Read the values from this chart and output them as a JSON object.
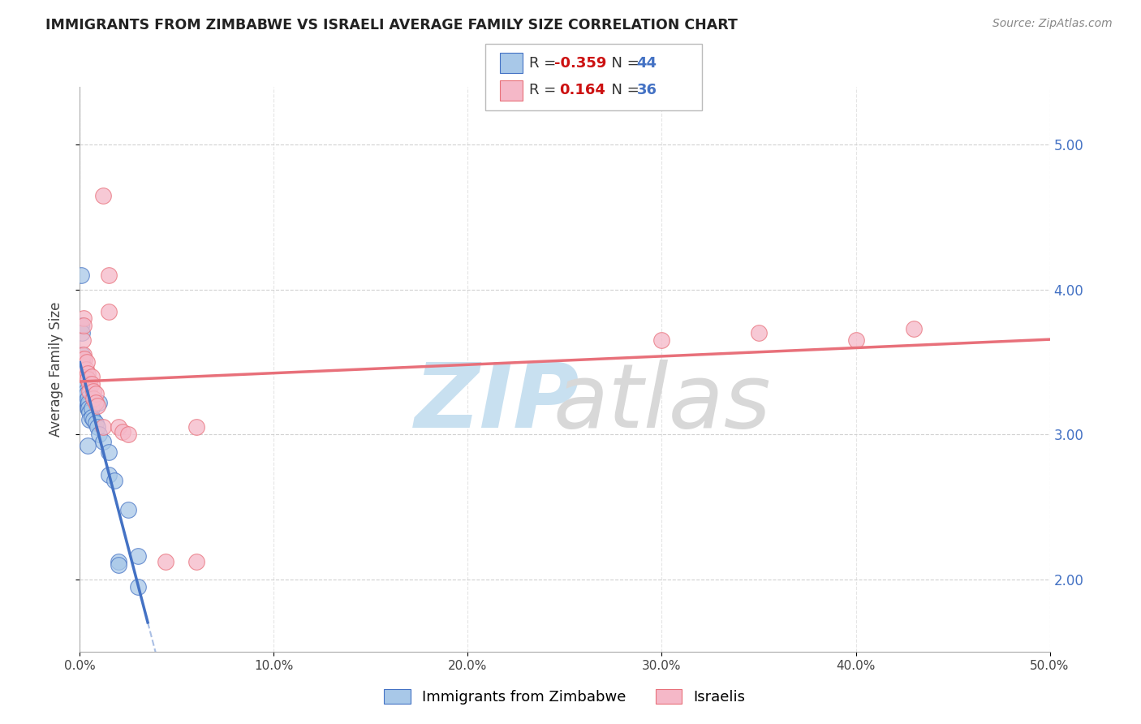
{
  "title": "IMMIGRANTS FROM ZIMBABWE VS ISRAELI AVERAGE FAMILY SIZE CORRELATION CHART",
  "source": "Source: ZipAtlas.com",
  "ylabel": "Average Family Size",
  "ylim": [
    1.5,
    5.4
  ],
  "xlim": [
    0.0,
    0.5
  ],
  "blue_scatter": [
    [
      0.0005,
      4.1
    ],
    [
      0.0008,
      3.75
    ],
    [
      0.001,
      3.7
    ],
    [
      0.001,
      3.55
    ],
    [
      0.001,
      3.5
    ],
    [
      0.0012,
      3.45
    ],
    [
      0.0015,
      3.42
    ],
    [
      0.0015,
      3.38
    ],
    [
      0.002,
      3.4
    ],
    [
      0.002,
      3.38
    ],
    [
      0.002,
      3.35
    ],
    [
      0.0022,
      3.32
    ],
    [
      0.0025,
      3.35
    ],
    [
      0.0025,
      3.3
    ],
    [
      0.003,
      3.33
    ],
    [
      0.003,
      3.28
    ],
    [
      0.003,
      3.25
    ],
    [
      0.0032,
      3.3
    ],
    [
      0.0035,
      3.28
    ],
    [
      0.0035,
      3.22
    ],
    [
      0.004,
      3.25
    ],
    [
      0.004,
      3.2
    ],
    [
      0.004,
      3.18
    ],
    [
      0.0045,
      3.22
    ],
    [
      0.0045,
      3.18
    ],
    [
      0.005,
      3.15
    ],
    [
      0.005,
      3.1
    ],
    [
      0.006,
      3.18
    ],
    [
      0.006,
      3.12
    ],
    [
      0.007,
      3.1
    ],
    [
      0.008,
      3.08
    ],
    [
      0.009,
      3.05
    ],
    [
      0.01,
      3.22
    ],
    [
      0.01,
      3.0
    ],
    [
      0.012,
      2.95
    ],
    [
      0.015,
      2.88
    ],
    [
      0.015,
      2.72
    ],
    [
      0.018,
      2.68
    ],
    [
      0.02,
      2.12
    ],
    [
      0.02,
      2.1
    ],
    [
      0.025,
      2.48
    ],
    [
      0.03,
      2.16
    ],
    [
      0.03,
      1.95
    ],
    [
      0.004,
      2.92
    ]
  ],
  "pink_scatter": [
    [
      0.0008,
      3.48
    ],
    [
      0.001,
      3.52
    ],
    [
      0.001,
      3.42
    ],
    [
      0.0015,
      3.65
    ],
    [
      0.002,
      3.8
    ],
    [
      0.002,
      3.75
    ],
    [
      0.002,
      3.55
    ],
    [
      0.0025,
      3.52
    ],
    [
      0.003,
      3.45
    ],
    [
      0.003,
      3.4
    ],
    [
      0.0035,
      3.5
    ],
    [
      0.004,
      3.42
    ],
    [
      0.004,
      3.38
    ],
    [
      0.005,
      3.35
    ],
    [
      0.005,
      3.3
    ],
    [
      0.006,
      3.4
    ],
    [
      0.006,
      3.35
    ],
    [
      0.007,
      3.3
    ],
    [
      0.007,
      3.25
    ],
    [
      0.008,
      3.28
    ],
    [
      0.008,
      3.22
    ],
    [
      0.009,
      3.2
    ],
    [
      0.012,
      3.05
    ],
    [
      0.012,
      4.65
    ],
    [
      0.015,
      4.1
    ],
    [
      0.015,
      3.85
    ],
    [
      0.02,
      3.05
    ],
    [
      0.022,
      3.02
    ],
    [
      0.025,
      3.0
    ],
    [
      0.06,
      3.05
    ],
    [
      0.06,
      2.12
    ],
    [
      0.3,
      3.65
    ],
    [
      0.35,
      3.7
    ],
    [
      0.4,
      3.65
    ],
    [
      0.43,
      3.73
    ],
    [
      0.044,
      2.12
    ]
  ],
  "blue_line_color": "#4472c4",
  "pink_line_color": "#e8707a",
  "blue_scatter_color": "#a8c8e8",
  "pink_scatter_color": "#f5b8c8",
  "grid_color": "#cccccc",
  "background_color": "#ffffff",
  "legend_label_blue": "Immigrants from Zimbabwe",
  "legend_label_pink": "Israelis",
  "R_blue": -0.359,
  "N_blue": 44,
  "R_pink": 0.164,
  "N_pink": 36,
  "watermark_zip_color": "#c8e0f0",
  "watermark_atlas_color": "#d8d8d8"
}
